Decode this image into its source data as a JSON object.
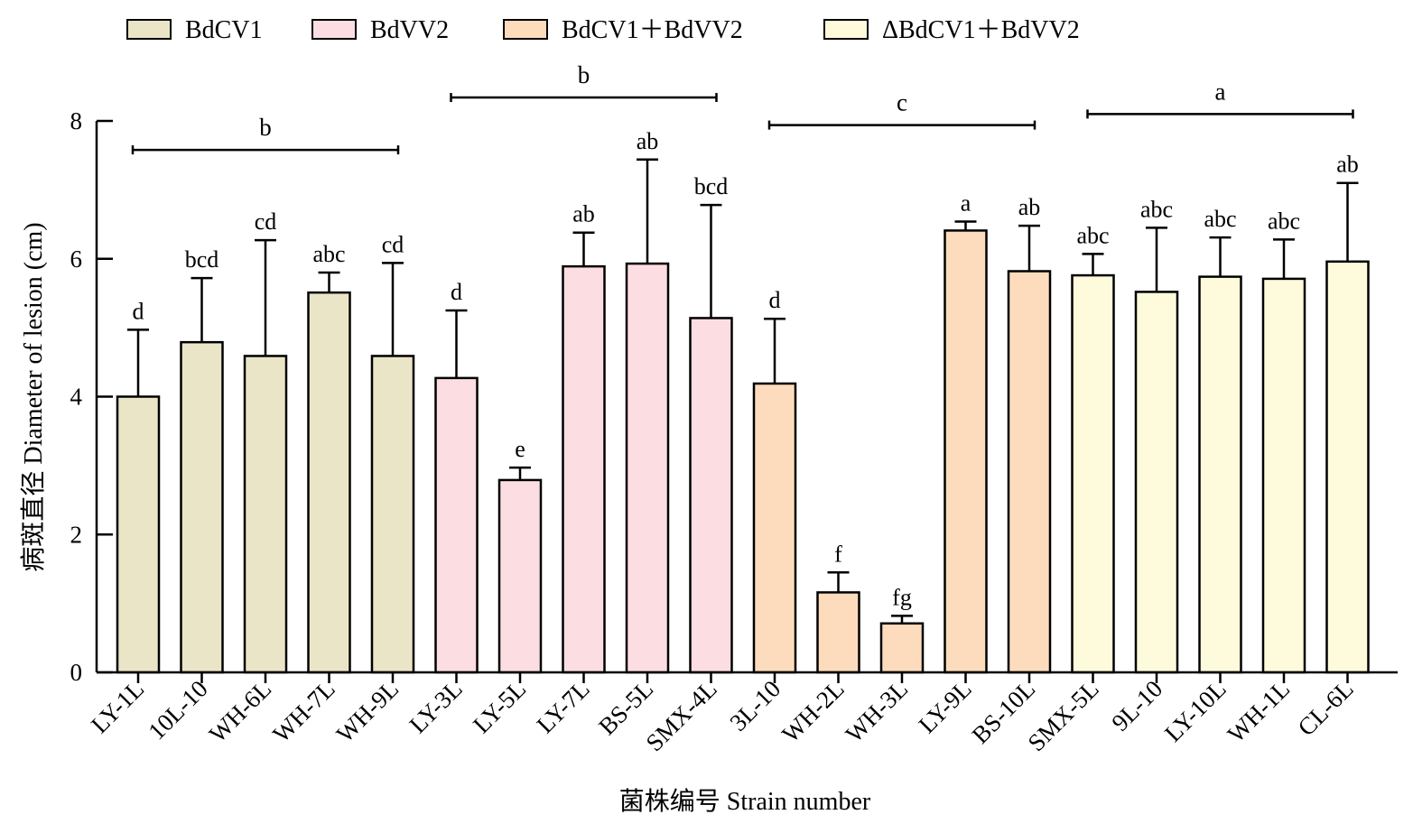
{
  "chart_data": {
    "type": "bar",
    "xlabel": "菌株编号 Strain number",
    "ylabel": "病斑直径 Diameter of lesion (cm)",
    "ylim": [
      0,
      8
    ],
    "yticks": [
      0,
      2,
      4,
      6,
      8
    ],
    "grid": false,
    "legend_position": "top",
    "error_bars": true,
    "series": [
      {
        "name": "BdCV1",
        "color": "#ebe5c8"
      },
      {
        "name": "BdVV2",
        "color": "#fcdee2"
      },
      {
        "name": "BdCV1＋BdVV2",
        "color": "#fcdcbc"
      },
      {
        "name": "ΔBdCV1＋BdVV2",
        "color": "#fefbdc"
      }
    ],
    "categories": [
      "LY-1L",
      "10L-10",
      "WH-6L",
      "WH-7L",
      "WH-9L",
      "LY-3L",
      "LY-5L",
      "LY-7L",
      "BS-5L",
      "SMX-4L",
      "3L-10",
      "WH-2L",
      "WH-3L",
      "LY-9L",
      "BS-10L",
      "SMX-5L",
      "9L-10",
      "LY-10L",
      "WH-1L",
      "CL-6L"
    ],
    "bars": [
      {
        "category": "LY-1L",
        "series": 0,
        "value": 4.0,
        "error": 0.97,
        "label": "d"
      },
      {
        "category": "10L-10",
        "series": 0,
        "value": 4.79,
        "error": 0.93,
        "label": "bcd"
      },
      {
        "category": "WH-6L",
        "series": 0,
        "value": 4.59,
        "error": 1.68,
        "label": "cd"
      },
      {
        "category": "WH-7L",
        "series": 0,
        "value": 5.51,
        "error": 0.29,
        "label": "abc"
      },
      {
        "category": "WH-9L",
        "series": 0,
        "value": 4.59,
        "error": 1.35,
        "label": "cd"
      },
      {
        "category": "LY-3L",
        "series": 1,
        "value": 4.27,
        "error": 0.98,
        "label": "d"
      },
      {
        "category": "LY-5L",
        "series": 1,
        "value": 2.79,
        "error": 0.18,
        "label": "e"
      },
      {
        "category": "LY-7L",
        "series": 1,
        "value": 5.89,
        "error": 0.49,
        "label": "ab"
      },
      {
        "category": "BS-5L",
        "series": 1,
        "value": 5.93,
        "error": 1.51,
        "label": "ab"
      },
      {
        "category": "SMX-4L",
        "series": 1,
        "value": 5.14,
        "error": 1.64,
        "label": "bcd"
      },
      {
        "category": "3L-10",
        "series": 2,
        "value": 4.19,
        "error": 0.94,
        "label": "d"
      },
      {
        "category": "WH-2L",
        "series": 2,
        "value": 1.16,
        "error": 0.29,
        "label": "f"
      },
      {
        "category": "WH-3L",
        "series": 2,
        "value": 0.71,
        "error": 0.11,
        "label": "fg"
      },
      {
        "category": "LY-9L",
        "series": 2,
        "value": 6.41,
        "error": 0.13,
        "label": "a"
      },
      {
        "category": "BS-10L",
        "series": 2,
        "value": 5.82,
        "error": 0.66,
        "label": "ab"
      },
      {
        "category": "SMX-5L",
        "series": 3,
        "value": 5.76,
        "error": 0.31,
        "label": "abc"
      },
      {
        "category": "9L-10",
        "series": 3,
        "value": 5.52,
        "error": 0.93,
        "label": "abc"
      },
      {
        "category": "LY-10L",
        "series": 3,
        "value": 5.74,
        "error": 0.57,
        "label": "abc"
      },
      {
        "category": "WH-1L",
        "series": 3,
        "value": 5.71,
        "error": 0.57,
        "label": "abc"
      },
      {
        "category": "CL-6L",
        "series": 3,
        "value": 5.96,
        "error": 1.14,
        "label": "ab"
      }
    ],
    "group_annotations": [
      {
        "series": 0,
        "label": "b",
        "y": 7.58
      },
      {
        "series": 1,
        "label": "b",
        "y": 8.34
      },
      {
        "series": 2,
        "label": "c",
        "y": 7.94
      },
      {
        "series": 3,
        "label": "a",
        "y": 8.1
      }
    ]
  }
}
